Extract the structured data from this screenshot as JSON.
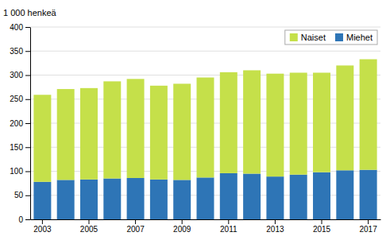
{
  "chart_data": {
    "type": "bar",
    "stacked": true,
    "y_label": "1 000 henkeä",
    "categories": [
      "2003",
      null,
      "2005",
      null,
      "2007",
      null,
      "2009",
      null,
      "2011",
      null,
      "2013",
      null,
      "2015",
      null,
      "2017"
    ],
    "series": [
      {
        "name": "Miehet",
        "color": "#2e75b6",
        "values": [
          78,
          82,
          83,
          85,
          86,
          83,
          82,
          87,
          96,
          95,
          89,
          93,
          98,
          102,
          103
        ]
      },
      {
        "name": "Naiset",
        "color": "#c5e04a",
        "values": [
          181,
          189,
          190,
          202,
          206,
          195,
          200,
          208,
          210,
          215,
          214,
          212,
          207,
          218,
          230
        ]
      }
    ],
    "ylim": [
      0,
      400
    ],
    "yticks": [
      0,
      50,
      100,
      150,
      200,
      250,
      300,
      350,
      400
    ],
    "grid": true,
    "legend": "upper-right"
  }
}
